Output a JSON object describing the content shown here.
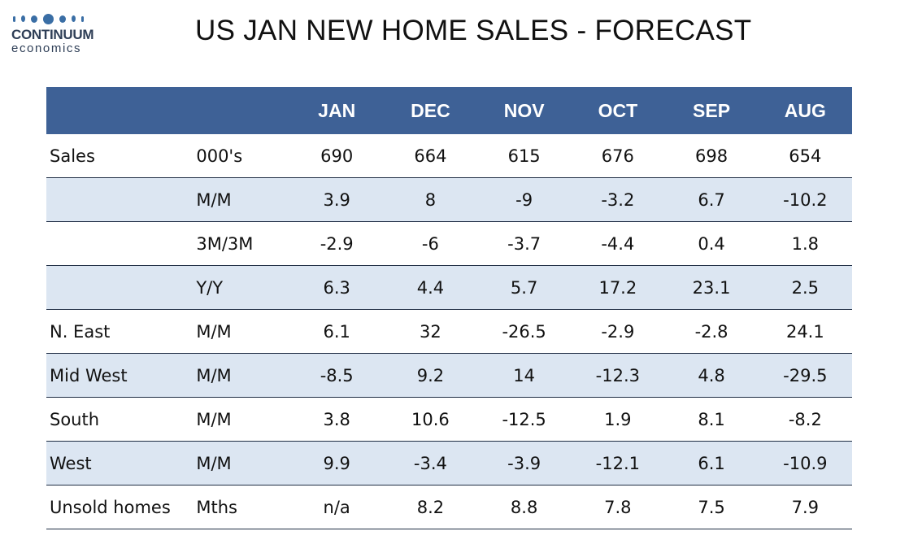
{
  "brand": {
    "name_line1": "CONTINUUM",
    "name_line2": "economics",
    "color": "#3a6ea5"
  },
  "title": "US JAN NEW HOME SALES - FORECAST",
  "table": {
    "header_color": "#3e6196",
    "shade_color": "#dce6f2",
    "columns": [
      "JAN",
      "DEC",
      "NOV",
      "OCT",
      "SEP",
      "AUG"
    ],
    "rows": [
      {
        "label": "Sales",
        "unit": "000's",
        "values": [
          "690",
          "664",
          "615",
          "676",
          "698",
          "654"
        ],
        "shaded": false
      },
      {
        "label": "",
        "unit": "M/M",
        "values": [
          "3.9",
          "8",
          "-9",
          "-3.2",
          "6.7",
          "-10.2"
        ],
        "shaded": true
      },
      {
        "label": "",
        "unit": "3M/3M",
        "values": [
          "-2.9",
          "-6",
          "-3.7",
          "-4.4",
          "0.4",
          "1.8"
        ],
        "shaded": false
      },
      {
        "label": "",
        "unit": "Y/Y",
        "values": [
          "6.3",
          "4.4",
          "5.7",
          "17.2",
          "23.1",
          "2.5"
        ],
        "shaded": true
      },
      {
        "label": "N. East",
        "unit": "M/M",
        "values": [
          "6.1",
          "32",
          "-26.5",
          "-2.9",
          "-2.8",
          "24.1"
        ],
        "shaded": false
      },
      {
        "label": "Mid West",
        "unit": "M/M",
        "values": [
          "-8.5",
          "9.2",
          "14",
          "-12.3",
          "4.8",
          "-29.5"
        ],
        "shaded": true
      },
      {
        "label": "South",
        "unit": "M/M",
        "values": [
          "3.8",
          "10.6",
          "-12.5",
          "1.9",
          "8.1",
          "-8.2"
        ],
        "shaded": false
      },
      {
        "label": "West",
        "unit": "M/M",
        "values": [
          "9.9",
          "-3.4",
          "-3.9",
          "-12.1",
          "6.1",
          "-10.9"
        ],
        "shaded": true
      },
      {
        "label": "Unsold homes",
        "unit": "Mths",
        "values": [
          "n/a",
          "8.2",
          "8.8",
          "7.8",
          "7.5",
          "7.9"
        ],
        "shaded": false
      }
    ]
  }
}
